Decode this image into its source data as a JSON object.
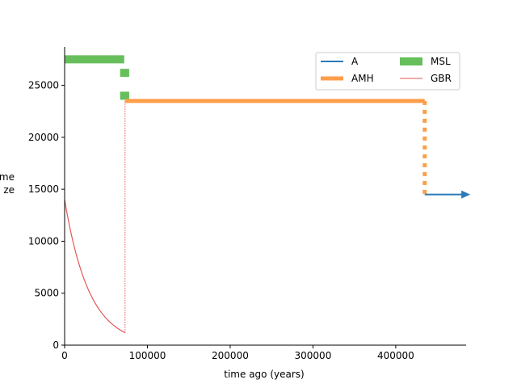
{
  "chart_data": {
    "type": "line",
    "title": "",
    "xlabel": "time ago (years)",
    "ylabel": "me\nze",
    "xlim": [
      0,
      485000
    ],
    "ylim": [
      0,
      28700
    ],
    "x_ticks": [
      0,
      100000,
      200000,
      300000,
      400000
    ],
    "x_tick_labels": [
      "0",
      "100000",
      "200000",
      "300000",
      "400000"
    ],
    "y_ticks": [
      0,
      5000,
      10000,
      15000,
      20000,
      25000
    ],
    "y_tick_labels": [
      "0",
      "5000",
      "10000",
      "15000",
      "20000",
      "25000"
    ],
    "grid": false,
    "legend_position": "top-right",
    "series": [
      {
        "name": "A",
        "color": "#2b7bb9",
        "segments": [
          {
            "x_start": 435000,
            "x_end": 490000,
            "y": 14500,
            "arrow": true
          }
        ]
      },
      {
        "name": "AMH",
        "color": "#ff9e4a",
        "segments": [
          {
            "x_start": 73000,
            "x_end": 435000,
            "y": 23500
          }
        ],
        "transition": {
          "x": 435000,
          "y_from": 23500,
          "y_to": 14500
        }
      },
      {
        "name": "MSL",
        "color": "#67bf5c",
        "segments": [
          {
            "x_start": 0,
            "x_end": 72000,
            "y": 27500
          },
          {
            "x_start": 67000,
            "x_end": 78000,
            "y": 26200
          },
          {
            "x_start": 67000,
            "x_end": 78000,
            "y": 24000
          }
        ]
      },
      {
        "name": "GBR",
        "color": "#e45756",
        "curve": {
          "x_start": 0,
          "x_end": 73000,
          "y_start": 14000,
          "y_end": 1200
        },
        "transition": {
          "x": 73000,
          "y_from": 1200,
          "y_to": 23500
        }
      }
    ]
  }
}
